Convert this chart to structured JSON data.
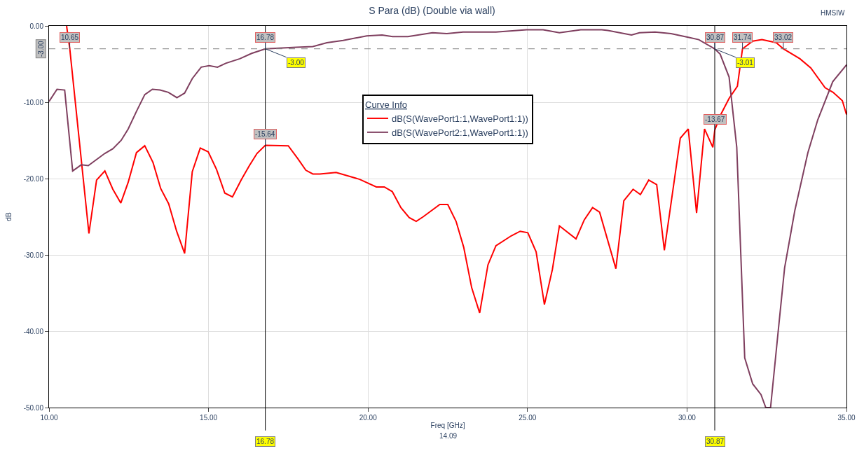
{
  "chart_data": {
    "type": "line",
    "title": "S Para (dB) (Double via wall)",
    "xlabel": "Freq [GHz]",
    "ylabel": "dB",
    "legend_title": "Curve Info",
    "legend": "top",
    "xlim": [
      10,
      35
    ],
    "xticks": [
      {
        "value": 10,
        "label": "10.00"
      },
      {
        "value": 15,
        "label": "15.00"
      },
      {
        "value": 20,
        "label": "20.00"
      },
      {
        "value": 25,
        "label": "25.00"
      },
      {
        "value": 30,
        "label": "30.00"
      },
      {
        "value": 35,
        "label": "35.00"
      }
    ],
    "ylim": [
      -50,
      0
    ],
    "yticks": [
      {
        "value": -50,
        "label": "-50.00"
      },
      {
        "value": -40,
        "label": "-40.00"
      },
      {
        "value": -30,
        "label": "-30.00"
      },
      {
        "value": -20,
        "label": "-20.00"
      },
      {
        "value": -10,
        "label": "-10.00"
      },
      {
        "value": 0,
        "label": "0.00"
      }
    ],
    "grid": true,
    "marker": "none",
    "line_style": "solid",
    "series": [
      {
        "name": "dB(S(WavePort1:1,WavePort1:1))",
        "color": "#ff0000",
        "x": [
          10.55,
          10.65,
          11.25,
          11.49,
          11.75,
          12.0,
          12.25,
          12.48,
          12.74,
          13.0,
          13.26,
          13.5,
          13.75,
          14.0,
          14.25,
          14.49,
          14.74,
          14.99,
          15.25,
          15.51,
          15.75,
          16.02,
          16.28,
          16.52,
          16.78,
          17.5,
          17.8,
          18.05,
          18.27,
          18.49,
          19.0,
          19.74,
          20.26,
          20.51,
          20.76,
          21.03,
          21.29,
          21.51,
          21.73,
          22.25,
          22.5,
          22.76,
          23.0,
          23.25,
          23.5,
          23.76,
          24.01,
          24.49,
          24.77,
          25.01,
          25.27,
          25.53,
          25.78,
          26.0,
          26.52,
          26.78,
          27.04,
          27.26,
          27.77,
          28.02,
          28.31,
          28.54,
          28.8,
          29.05,
          29.29,
          29.79,
          30.04,
          30.3,
          30.55,
          30.81,
          30.87,
          31.06,
          31.32,
          31.58,
          31.74,
          32.06,
          32.35,
          32.8,
          33.02,
          33.54,
          33.88,
          34.33,
          34.58,
          34.87,
          35.0
        ],
        "values": [
          0,
          -3,
          -27.2,
          -20.2,
          -19.0,
          -21.4,
          -23.2,
          -20.5,
          -16.6,
          -15.7,
          -17.9,
          -21.3,
          -23.3,
          -26.9,
          -29.8,
          -19.1,
          -16.0,
          -16.5,
          -18.8,
          -21.9,
          -22.4,
          -20.2,
          -18.3,
          -16.7,
          -15.64,
          -15.7,
          -17.4,
          -18.9,
          -19.4,
          -19.4,
          -19.2,
          -20.1,
          -21.1,
          -21.1,
          -21.7,
          -23.8,
          -25.1,
          -25.6,
          -25.0,
          -23.4,
          -23.4,
          -25.6,
          -29.0,
          -34.3,
          -37.6,
          -31.3,
          -28.8,
          -27.5,
          -26.9,
          -27.1,
          -29.6,
          -36.5,
          -31.9,
          -26.2,
          -27.9,
          -25.4,
          -23.8,
          -24.4,
          -31.8,
          -22.9,
          -21.4,
          -22.1,
          -20.2,
          -20.8,
          -29.4,
          -14.7,
          -13.5,
          -24.5,
          -13.5,
          -15.9,
          -13.67,
          -11.6,
          -9.5,
          -7.9,
          -3.0,
          -2.0,
          -1.8,
          -2.2,
          -3.0,
          -4.3,
          -5.5,
          -8.1,
          -8.7,
          -9.8,
          -11.6
        ]
      },
      {
        "name": "dB(S(WavePort2:1,WavePort1:1))",
        "color": "#7f3f5f",
        "x": [
          10.0,
          10.25,
          10.49,
          10.74,
          11.01,
          11.23,
          11.75,
          12.0,
          12.26,
          12.48,
          12.74,
          13.0,
          13.24,
          13.48,
          13.74,
          14.01,
          14.25,
          14.49,
          14.77,
          15.02,
          15.28,
          15.54,
          15.98,
          16.35,
          16.78,
          17.75,
          18.27,
          18.71,
          19.22,
          19.96,
          20.44,
          20.77,
          20.99,
          21.25,
          22.02,
          22.47,
          22.98,
          24.01,
          24.97,
          25.49,
          26.0,
          26.67,
          27.33,
          27.52,
          28.26,
          28.51,
          29.0,
          29.5,
          30.04,
          30.37,
          30.87,
          31.04,
          31.32,
          31.56,
          31.81,
          32.06,
          32.32,
          32.47,
          32.62,
          32.84,
          33.06,
          33.38,
          33.79,
          34.1,
          34.57,
          35.0
        ],
        "values": [
          -9.9,
          -8.3,
          -8.4,
          -19.0,
          -18.2,
          -18.3,
          -16.7,
          -16.1,
          -15.0,
          -13.5,
          -11.2,
          -9.0,
          -8.3,
          -8.4,
          -8.7,
          -9.4,
          -8.8,
          -6.9,
          -5.4,
          -5.2,
          -5.4,
          -4.9,
          -4.3,
          -3.6,
          -3.0,
          -2.8,
          -2.7,
          -2.2,
          -1.9,
          -1.3,
          -1.2,
          -1.4,
          -1.4,
          -1.4,
          -0.9,
          -1.0,
          -0.8,
          -0.8,
          -0.5,
          -0.5,
          -0.9,
          -0.5,
          -0.5,
          -0.6,
          -1.2,
          -0.9,
          -0.8,
          -1.0,
          -1.5,
          -1.8,
          -3.01,
          -3.7,
          -6.7,
          -15.9,
          -43.5,
          -46.9,
          -48.3,
          -50,
          -50,
          -40.8,
          -31.7,
          -24.2,
          -16.6,
          -12.3,
          -7.3,
          -5.1
        ]
      }
    ],
    "ref_lines": [
      {
        "axis": "y",
        "value": -3,
        "label": "-3.00",
        "color": "#808080",
        "line_style": "dashed"
      },
      {
        "axis": "x",
        "value": 16.78,
        "label": "16.78",
        "color": "#000000",
        "line_style": "solid"
      },
      {
        "axis": "x",
        "value": 30.87,
        "label": "30.87",
        "color": "#000000",
        "line_style": "solid"
      }
    ],
    "annotations": [
      "HMSIW",
      "14.09",
      {
        "text": "10.65",
        "x": 10.65,
        "y": -3
      },
      {
        "text": "16.78",
        "x": 16.78,
        "y": -3
      },
      {
        "text": "-3.00",
        "x": 16.78,
        "y": -3
      },
      {
        "text": "-15.64",
        "x": 16.78,
        "y": -15.64
      },
      {
        "text": "30.87",
        "x": 30.87,
        "y": -3.01
      },
      {
        "text": "-3.01",
        "x": 30.87,
        "y": -3.01
      },
      {
        "text": "-13.67",
        "x": 30.87,
        "y": -13.67
      },
      {
        "text": "31.74",
        "x": 31.74,
        "y": -3
      },
      {
        "text": "33.02",
        "x": 33.02,
        "y": -3
      }
    ]
  }
}
